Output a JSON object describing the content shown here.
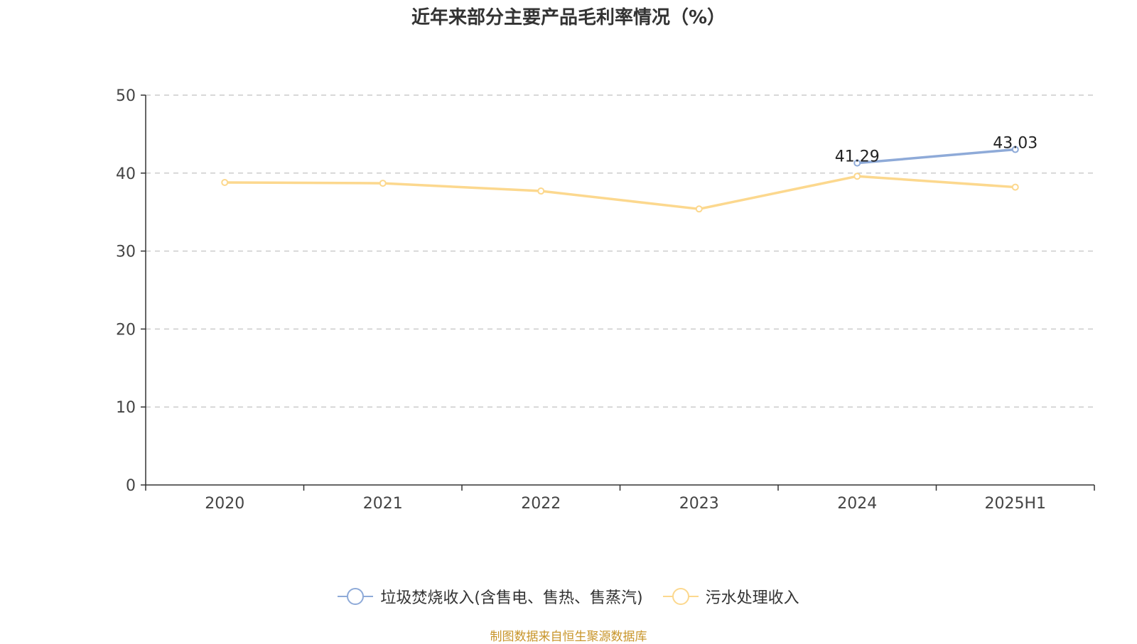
{
  "chart_data": {
    "type": "line",
    "title": "近年来部分主要产品毛利率情况（%）",
    "categories": [
      "2020",
      "2021",
      "2022",
      "2023",
      "2024",
      "2025H1"
    ],
    "ylim": [
      0,
      50
    ],
    "yticks": [
      0,
      10,
      20,
      30,
      40,
      50
    ],
    "grid": true,
    "legend_position": "bottom",
    "series": [
      {
        "name": "垃圾焚烧收入(含售电、售热、售蒸汽)",
        "color": "#8eaad8",
        "values": [
          null,
          null,
          null,
          null,
          41.29,
          43.03
        ],
        "labels": [
          "",
          "",
          "",
          "",
          "41.29",
          "43.03"
        ]
      },
      {
        "name": "污水处理收入",
        "color": "#fcd88e",
        "values": [
          38.8,
          38.7,
          37.7,
          35.4,
          39.6,
          38.2
        ],
        "labels": [
          "",
          "",
          "",
          "",
          "",
          ""
        ]
      }
    ]
  },
  "footer": {
    "source": "制图数据来自恒生聚源数据库"
  }
}
